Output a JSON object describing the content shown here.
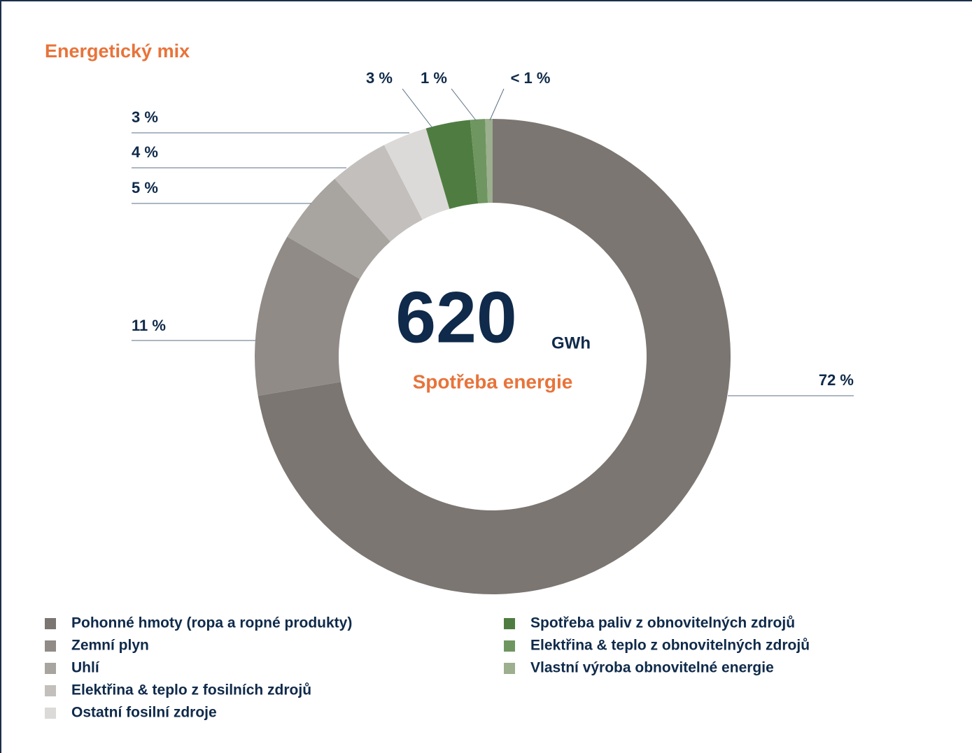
{
  "chart_data": {
    "type": "pie",
    "donut": true,
    "title": "Energetický mix",
    "center_value": 620,
    "center_unit": "GWh",
    "center_label": "Spotřeba energie",
    "categories": [
      "Pohonné hmoty (ropa a ropné produkty)",
      "Zemní plyn",
      "Uhlí",
      "Elektřina & teplo z fosilních zdrojů",
      "Ostatní fosilní zdroje",
      "Spotřeba paliv z obnovitelných zdrojů",
      "Elektřina & teplo z obnovitelných zdrojů",
      "Vlastní výroba obnovitelné energie"
    ],
    "values": [
      72,
      11,
      5,
      4,
      3,
      3,
      1,
      0.5
    ],
    "value_labels": [
      "72 %",
      "11 %",
      "5 %",
      "4 %",
      "3 %",
      "3 %",
      "1 %",
      "< 1 %"
    ],
    "colors": [
      "#7b7672",
      "#908b87",
      "#a8a4a0",
      "#c3bfbc",
      "#dcdad8",
      "#4f7d41",
      "#6f9660",
      "#9caf8e"
    ]
  }
}
